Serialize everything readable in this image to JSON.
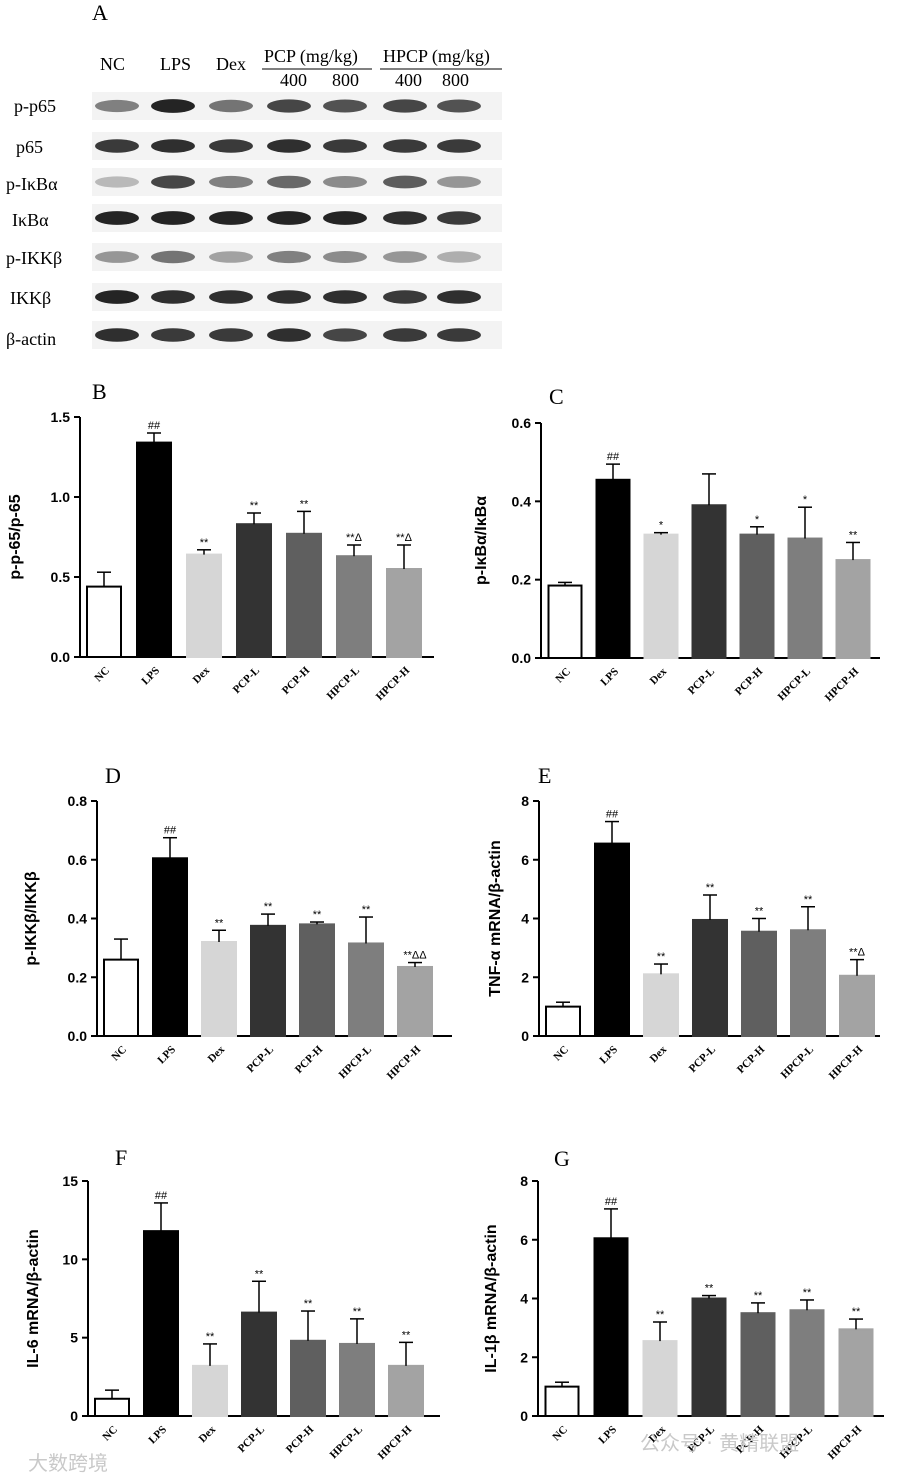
{
  "blot": {
    "panel_letter": "A",
    "lanes": [
      "NC",
      "LPS",
      "Dex"
    ],
    "pcp_label": "PCP (mg/kg)",
    "hpcp_label": "HPCP (mg/kg)",
    "doses": [
      "400",
      "800",
      "400",
      "800"
    ],
    "rows": [
      "p-p65",
      "p65",
      "p-IκBα",
      "IκBα",
      "p-IKKβ",
      "IKKβ",
      "β-actin"
    ]
  },
  "chart_data": [
    {
      "id": "B",
      "type": "bar",
      "panel_letter": "B",
      "categories": [
        "NC",
        "LPS",
        "Dex",
        "PCP-L",
        "PCP-H",
        "HPCP-L",
        "HPCP-H"
      ],
      "values": [
        0.44,
        1.34,
        0.64,
        0.83,
        0.77,
        0.63,
        0.55
      ],
      "errors": [
        0.09,
        0.06,
        0.03,
        0.07,
        0.14,
        0.07,
        0.15
      ],
      "annotations": [
        "",
        "##",
        "**",
        "**",
        "**",
        "**Δ",
        "**Δ"
      ],
      "ylabel": "p-p-65/p-65",
      "ylim": [
        0,
        1.5
      ],
      "yticks": [
        "0.0",
        "0.5",
        "1.0",
        "1.5"
      ]
    },
    {
      "id": "C",
      "type": "bar",
      "panel_letter": "C",
      "categories": [
        "NC",
        "LPS",
        "Dex",
        "PCP-L",
        "PCP-H",
        "HPCP-L",
        "HPCP-H"
      ],
      "values": [
        0.185,
        0.455,
        0.315,
        0.39,
        0.315,
        0.305,
        0.25
      ],
      "errors": [
        0.008,
        0.04,
        0.005,
        0.08,
        0.02,
        0.08,
        0.045
      ],
      "annotations": [
        "",
        "##",
        "*",
        "",
        "*",
        "*",
        "**"
      ],
      "ylabel": "p-IκBα/IκBα",
      "ylim": [
        0,
        0.6
      ],
      "yticks": [
        "0.0",
        "0.2",
        "0.4",
        "0.6"
      ]
    },
    {
      "id": "D",
      "type": "bar",
      "panel_letter": "D",
      "categories": [
        "NC",
        "LPS",
        "Dex",
        "PCP-L",
        "PCP-H",
        "HPCP-L",
        "HPCP-H"
      ],
      "values": [
        0.26,
        0.605,
        0.32,
        0.375,
        0.38,
        0.315,
        0.235
      ],
      "errors": [
        0.07,
        0.07,
        0.04,
        0.04,
        0.008,
        0.09,
        0.015
      ],
      "annotations": [
        "",
        "##",
        "**",
        "**",
        "**",
        "**",
        "**ΔΔ"
      ],
      "ylabel": "p-IKKβ/IKKβ",
      "ylim": [
        0,
        0.8
      ],
      "yticks": [
        "0.0",
        "0.2",
        "0.4",
        "0.6",
        "0.8"
      ]
    },
    {
      "id": "E",
      "type": "bar",
      "panel_letter": "E",
      "categories": [
        "NC",
        "LPS",
        "Dex",
        "PCP-L",
        "PCP-H",
        "HPCP-L",
        "HPCP-H"
      ],
      "values": [
        1.0,
        6.55,
        2.1,
        3.95,
        3.55,
        3.6,
        2.05
      ],
      "errors": [
        0.15,
        0.75,
        0.35,
        0.85,
        0.45,
        0.8,
        0.55
      ],
      "annotations": [
        "",
        "##",
        "**",
        "**",
        "**",
        "**",
        "**Δ"
      ],
      "ylabel": "TNF-α mRNA/β-actin",
      "ylim": [
        0,
        8
      ],
      "yticks": [
        "0",
        "2",
        "4",
        "6",
        "8"
      ]
    },
    {
      "id": "F",
      "type": "bar",
      "panel_letter": "F",
      "categories": [
        "NC",
        "LPS",
        "Dex",
        "PCP-L",
        "PCP-H",
        "HPCP-L",
        "HPCP-H"
      ],
      "values": [
        1.1,
        11.8,
        3.2,
        6.6,
        4.8,
        4.6,
        3.2
      ],
      "errors": [
        0.55,
        1.8,
        1.4,
        2.0,
        1.9,
        1.6,
        1.5
      ],
      "annotations": [
        "",
        "##",
        "**",
        "**",
        "**",
        "**",
        "**"
      ],
      "ylabel": "IL-6 mRNA/β-actin",
      "ylim": [
        0,
        15
      ],
      "yticks": [
        "0",
        "5",
        "10",
        "15"
      ]
    },
    {
      "id": "G",
      "type": "bar",
      "panel_letter": "G",
      "categories": [
        "NC",
        "LPS",
        "Dex",
        "PCP-L",
        "PCP-H",
        "HPCP-L",
        "HPCP-H"
      ],
      "values": [
        1.0,
        6.05,
        2.55,
        4.0,
        3.5,
        3.6,
        2.95
      ],
      "errors": [
        0.15,
        1.0,
        0.65,
        0.1,
        0.35,
        0.35,
        0.35
      ],
      "annotations": [
        "",
        "##",
        "**",
        "**",
        "**",
        "**",
        "**"
      ],
      "ylabel": "IL-1β mRNA/β-actin",
      "ylim": [
        0,
        8
      ],
      "yticks": [
        "0",
        "2",
        "4",
        "6",
        "8"
      ]
    }
  ],
  "colors": {
    "bars": [
      "#ffffff",
      "#000000",
      "#d6d6d6",
      "#333333",
      "#5f5f5f",
      "#7e7e7e",
      "#a3a3a3"
    ]
  },
  "watermarks": {
    "left": "大数跨境",
    "right": "公众号 · 黄精联盟"
  }
}
